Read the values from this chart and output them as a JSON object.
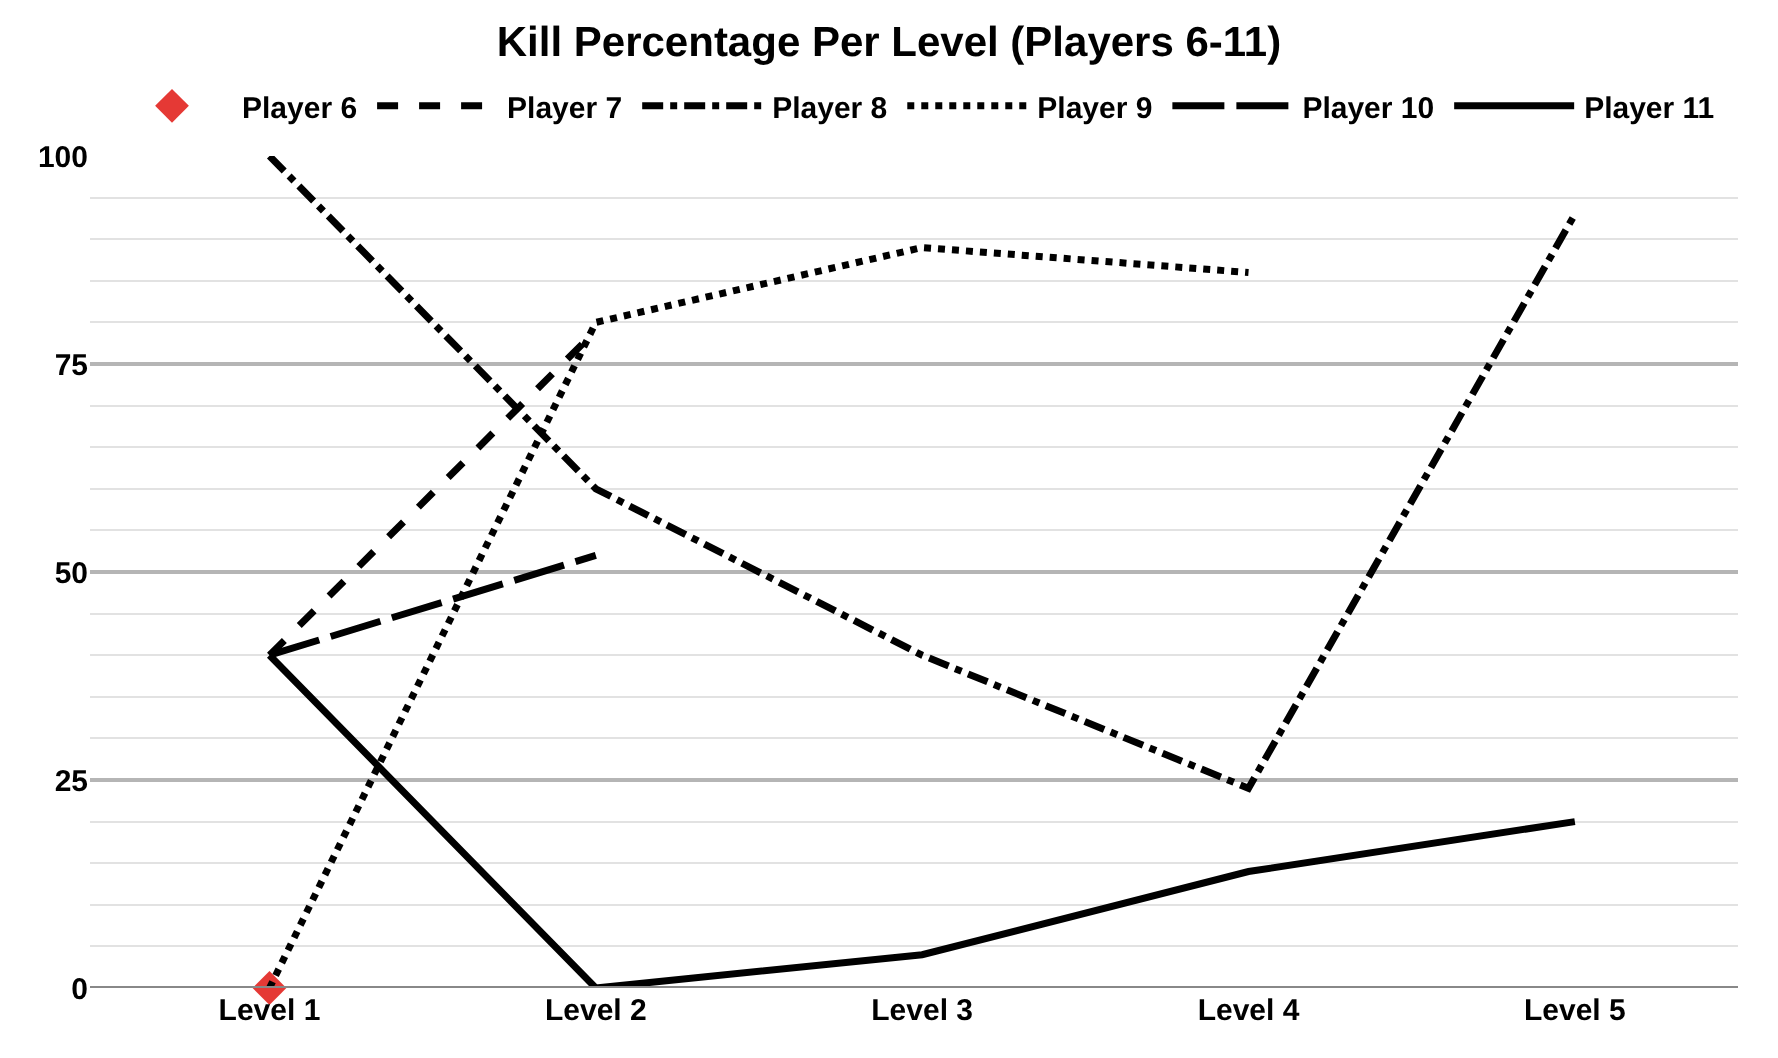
{
  "chart_data": {
    "type": "line",
    "title": "Kill Percentage Per Level (Players 6-11)",
    "categories": [
      "Level 1",
      "Level 2",
      "Level 3",
      "Level 4",
      "Level 5"
    ],
    "series": [
      {
        "name": "Player 6",
        "color": "#e53935",
        "marker": "diamond",
        "line_style": "none",
        "values": [
          0,
          null,
          null,
          null,
          null
        ]
      },
      {
        "name": "Player 7",
        "color": "#000000",
        "line_style": "dashed",
        "values": [
          40,
          79,
          null,
          null,
          null
        ]
      },
      {
        "name": "Player 8",
        "color": "#000000",
        "line_style": "dashdot",
        "values": [
          100,
          60,
          40,
          24,
          93
        ]
      },
      {
        "name": "Player 9",
        "color": "#000000",
        "line_style": "dotted",
        "values": [
          0,
          80,
          89,
          86,
          null
        ]
      },
      {
        "name": "Player 10",
        "color": "#000000",
        "line_style": "longdash",
        "values": [
          40,
          52,
          null,
          null,
          null
        ]
      },
      {
        "name": "Player 11",
        "color": "#000000",
        "line_style": "solid",
        "values": [
          40,
          0,
          4,
          14,
          20
        ]
      }
    ],
    "ylim": [
      0,
      100
    ],
    "yticks": [
      0,
      25,
      50,
      75,
      100
    ],
    "grid": "y",
    "legend": "top"
  }
}
